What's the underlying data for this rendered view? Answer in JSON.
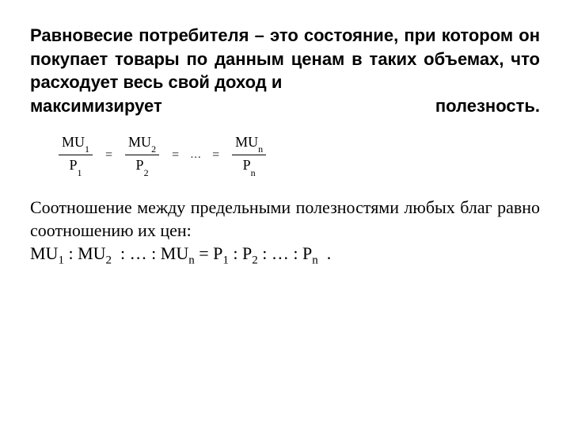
{
  "heading": {
    "lines": "Равновесие потребителя – это состояние, при котором он покупает товары по данным ценам в таких объемах, что расходует весь свой доход и",
    "last_left": "максимизирует",
    "last_right": "полезность."
  },
  "formula": {
    "terms": [
      {
        "num_base": "MU",
        "num_sub": "1",
        "den_base": "P",
        "den_sub": "1"
      },
      {
        "num_base": "MU",
        "num_sub": "2",
        "den_base": "P",
        "den_sub": "2"
      },
      {
        "num_base": "MU",
        "num_sub": "n",
        "den_base": "P",
        "den_sub": "n"
      }
    ],
    "eq": "=",
    "dots": "…"
  },
  "body": {
    "text": "Соотношение между предельными полезностями любых благ равно соотношению их цен:"
  },
  "ratio": {
    "mu": "MU",
    "p": "P",
    "s1": "1",
    "s2": "2",
    "sn": "n",
    "colon": ":",
    "eq": "=",
    "ell": "…",
    "period": "."
  },
  "colors": {
    "bg": "#ffffff",
    "text": "#000000"
  }
}
